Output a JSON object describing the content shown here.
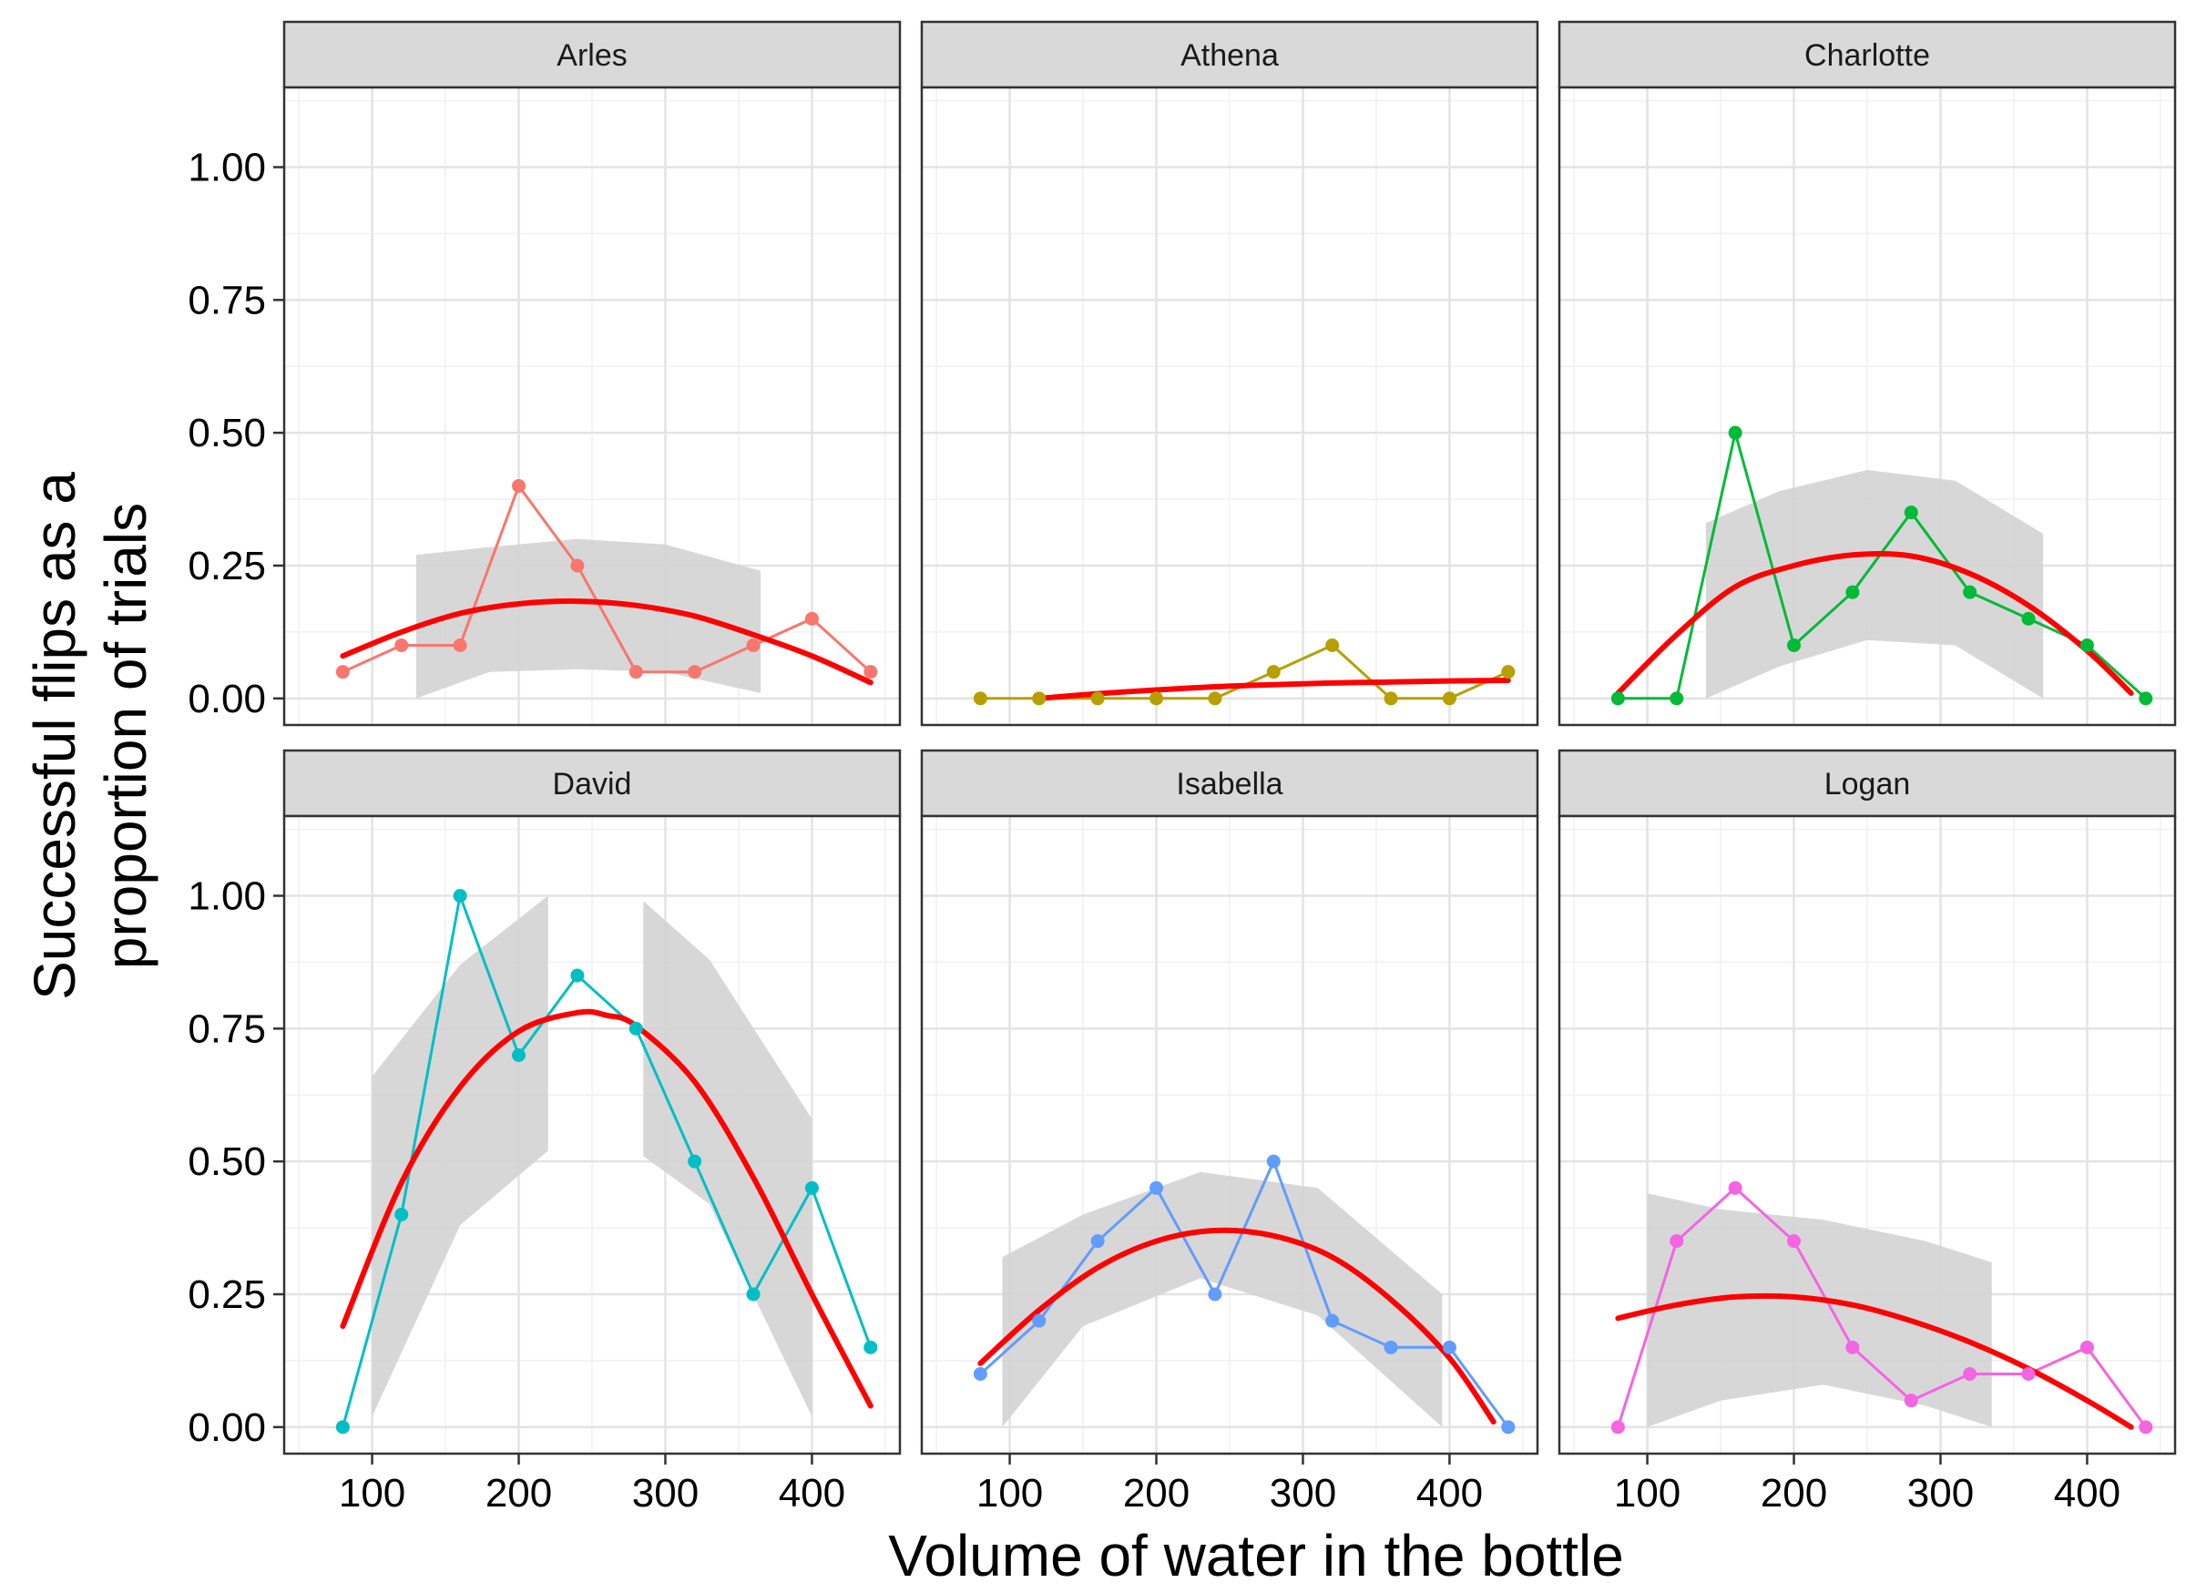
{
  "chart_data": {
    "type": "line",
    "xlabel": "Volume of water in the bottle",
    "ylabel_lines": [
      "Successful flips as a",
      "proportion of trials"
    ],
    "xlim": [
      40,
      460
    ],
    "ylim": [
      -0.05,
      1.15
    ],
    "x_ticks": [
      100,
      200,
      300,
      400
    ],
    "x_tick_labels": [
      "100",
      "200",
      "300",
      "400"
    ],
    "y_ticks": [
      0,
      0.25,
      0.5,
      0.75,
      1.0
    ],
    "y_tick_labels": [
      "0.00",
      "0.25",
      "0.50",
      "0.75",
      "1.00"
    ],
    "grid": true,
    "x": [
      80,
      120,
      160,
      200,
      240,
      280,
      320,
      360,
      400,
      440
    ],
    "fit_color": "#ff0000",
    "band_color": "#d3d3d3",
    "panels": [
      {
        "name": "Arles",
        "color": "#f8766d",
        "values": [
          0.05,
          0.1,
          0.1,
          0.4,
          0.25,
          0.05,
          0.05,
          0.1,
          0.15,
          0.05
        ],
        "fit": {
          "x": [
            80,
            120,
            160,
            200,
            240,
            280,
            320,
            360,
            400,
            440
          ],
          "y": [
            0.08,
            0.125,
            0.16,
            0.178,
            0.183,
            0.175,
            0.155,
            0.12,
            0.08,
            0.03
          ]
        },
        "band": {
          "x": [
            130,
            180,
            240,
            300,
            365
          ],
          "upper": [
            0.27,
            0.285,
            0.3,
            0.29,
            0.24
          ],
          "lower": [
            0.0,
            0.05,
            0.055,
            0.05,
            0.01
          ]
        }
      },
      {
        "name": "Athena",
        "color": "#b79f00",
        "values": [
          0.0,
          0.0,
          0.0,
          0.0,
          0.0,
          0.05,
          0.1,
          0.0,
          0.0,
          0.05
        ],
        "fit": {
          "x": [
            120,
            160,
            200,
            240,
            280,
            320,
            360,
            400,
            440
          ],
          "y": [
            0.0,
            0.009,
            0.016,
            0.022,
            0.026,
            0.029,
            0.031,
            0.033,
            0.034
          ]
        },
        "band": null
      },
      {
        "name": "Charlotte",
        "color": "#00ba38",
        "values": [
          0.0,
          0.0,
          0.5,
          0.1,
          0.2,
          0.35,
          0.2,
          0.15,
          0.1,
          0.0
        ],
        "fit": {
          "x": [
            80,
            120,
            160,
            200,
            240,
            280,
            320,
            360,
            400,
            430
          ],
          "y": [
            0.01,
            0.12,
            0.21,
            0.25,
            0.27,
            0.268,
            0.235,
            0.175,
            0.09,
            0.01
          ]
        },
        "band": {
          "x": [
            140,
            190,
            250,
            310,
            370
          ],
          "upper": [
            0.33,
            0.39,
            0.43,
            0.41,
            0.31
          ],
          "lower": [
            0.0,
            0.06,
            0.11,
            0.1,
            0.0
          ]
        }
      },
      {
        "name": "David",
        "color": "#00bfc4",
        "values": [
          0.0,
          0.4,
          1.0,
          0.7,
          0.85,
          0.75,
          0.5,
          0.25,
          0.45,
          0.15
        ],
        "fit": {
          "x": [
            80,
            120,
            160,
            200,
            240,
            260,
            280,
            320,
            360,
            400,
            440
          ],
          "y": [
            0.19,
            0.46,
            0.64,
            0.745,
            0.78,
            0.775,
            0.755,
            0.65,
            0.47,
            0.25,
            0.04
          ]
        },
        "band_segments": [
          {
            "x": [
              100,
              160,
              220
            ],
            "upper": [
              0.66,
              0.87,
              1.0
            ],
            "lower": [
              0.02,
              0.38,
              0.52
            ]
          },
          {
            "x": [
              285,
              330,
              400
            ],
            "upper": [
              0.99,
              0.88,
              0.58
            ],
            "lower": [
              0.51,
              0.42,
              0.02
            ]
          }
        ]
      },
      {
        "name": "Isabella",
        "color": "#619cff",
        "values": [
          0.1,
          0.2,
          0.35,
          0.45,
          0.25,
          0.5,
          0.2,
          0.15,
          0.15,
          0.0
        ],
        "fit": {
          "x": [
            80,
            120,
            160,
            200,
            240,
            280,
            320,
            360,
            400,
            430
          ],
          "y": [
            0.12,
            0.22,
            0.3,
            0.35,
            0.37,
            0.36,
            0.32,
            0.24,
            0.13,
            0.01
          ]
        },
        "band": {
          "x": [
            95,
            150,
            230,
            310,
            395
          ],
          "upper": [
            0.32,
            0.4,
            0.48,
            0.45,
            0.25
          ],
          "lower": [
            0.0,
            0.19,
            0.28,
            0.21,
            0.0
          ]
        }
      },
      {
        "name": "Logan",
        "color": "#f564e3",
        "values": [
          0.0,
          0.35,
          0.45,
          0.35,
          0.15,
          0.05,
          0.1,
          0.1,
          0.15,
          0.0
        ],
        "fit": {
          "x": [
            80,
            120,
            160,
            200,
            240,
            280,
            320,
            360,
            400,
            430
          ],
          "y": [
            0.205,
            0.23,
            0.245,
            0.245,
            0.23,
            0.2,
            0.16,
            0.11,
            0.05,
            0.0
          ]
        },
        "band": {
          "x": [
            100,
            150,
            220,
            290,
            335
          ],
          "upper": [
            0.44,
            0.41,
            0.39,
            0.35,
            0.31
          ],
          "lower": [
            0.0,
            0.05,
            0.08,
            0.04,
            0.0
          ]
        }
      }
    ]
  }
}
